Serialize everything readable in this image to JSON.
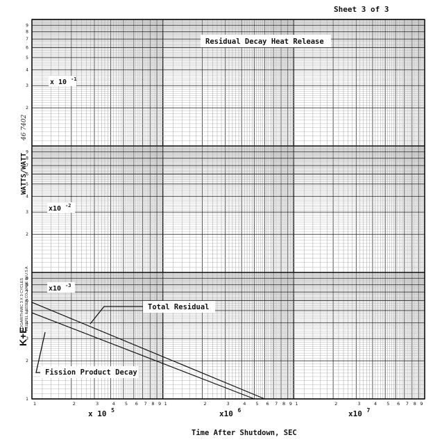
{
  "page": {
    "sheet_label": "Sheet 3 of 3",
    "catalog_number": "46 7402",
    "publisher_mark": "K+E",
    "publisher_line1": "LOGARITHMIC 3 X 3 CYCLES",
    "publisher_line2": "KEUFFEL & ESSER CO. MADE IN U.S.A."
  },
  "chart_data": {
    "type": "line",
    "title": "Residual Decay Heat Release",
    "xlabel": "Time After Shutdown, SEC",
    "ylabel": "WATTS/WATT",
    "xscale": "log",
    "yscale": "log",
    "xlim": [
      100000,
      100000000
    ],
    "ylim": [
      0.001,
      1
    ],
    "grid": true,
    "x_decade_labels": [
      {
        "text": "x 10",
        "sup": "5",
        "at": 100000
      },
      {
        "text": "x10",
        "sup": "6",
        "at": 1000000
      },
      {
        "text": "x10",
        "sup": "7",
        "at": 10000000
      }
    ],
    "y_decade_labels": [
      {
        "text": "x 10",
        "sup": "-1",
        "at": 0.1
      },
      {
        "text": "x10",
        "sup": "-2",
        "at": 0.01
      },
      {
        "text": "x10",
        "sup": "-3",
        "at": 0.001
      }
    ],
    "minor_tick_labels": [
      "1",
      "2",
      "3",
      "4",
      "5",
      "6",
      "7",
      "8",
      "9"
    ],
    "series": [
      {
        "name": "Total Residual",
        "x": [
          100000,
          6000000
        ],
        "y": [
          0.0058,
          0.001
        ]
      },
      {
        "name": "Fission Product Decay",
        "x": [
          100000,
          5000000
        ],
        "y": [
          0.0048,
          0.001
        ]
      }
    ],
    "annotations": [
      {
        "text": "Total Residual",
        "x": 800000,
        "y": 0.0055,
        "box": true
      },
      {
        "text": "Fission Product Decay",
        "x": 170000,
        "y": 0.0017,
        "box": true
      }
    ]
  }
}
